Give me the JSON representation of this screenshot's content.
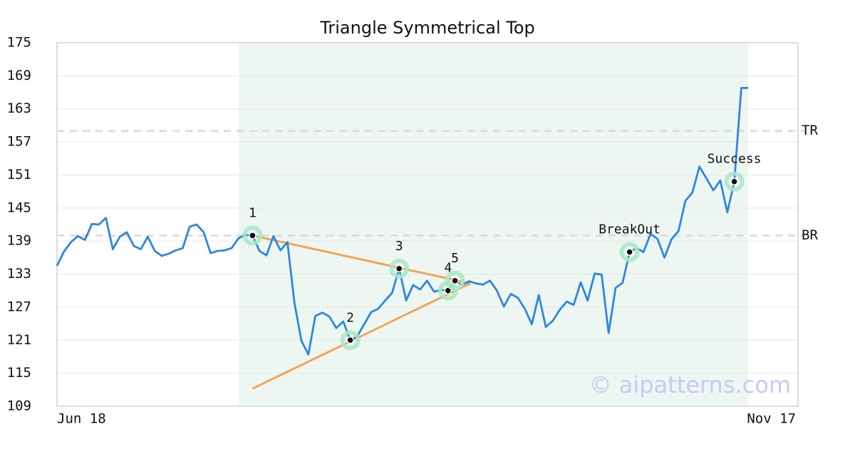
{
  "chart_data": {
    "type": "line",
    "title": "Triangle Symmetrical Top",
    "categories": [
      "Jun 18",
      null,
      null,
      null,
      null,
      null,
      null,
      null,
      null,
      null,
      null,
      null,
      null,
      null,
      null,
      null,
      null,
      null,
      null,
      null,
      null,
      null,
      null,
      null,
      null,
      null,
      null,
      null,
      null,
      null,
      null,
      null,
      null,
      null,
      null,
      null,
      null,
      null,
      null,
      null,
      null,
      null,
      null,
      null,
      null,
      null,
      null,
      null,
      null,
      null,
      null,
      null,
      null,
      null,
      null,
      null,
      null,
      null,
      null,
      null,
      null,
      null,
      null,
      null,
      null,
      null,
      null,
      null,
      null,
      null,
      null,
      null,
      null,
      null,
      null,
      null,
      null,
      null,
      null,
      null,
      null,
      null,
      null,
      null,
      null,
      null,
      null,
      null,
      null,
      null,
      null,
      null,
      null,
      null,
      null,
      null,
      null,
      null,
      null,
      "Nov 17"
    ],
    "series": [
      {
        "name": "Price",
        "color": "#2e86de",
        "values": [
          134.5,
          137.1,
          138.8,
          139.9,
          139.2,
          142.1,
          142.0,
          143.2,
          137.5,
          139.8,
          140.6,
          138.1,
          137.5,
          139.8,
          137.2,
          136.3,
          136.7,
          137.3,
          137.7,
          141.6,
          142.0,
          140.6,
          136.8,
          137.2,
          137.3,
          137.7,
          139.5,
          140.1,
          140.0,
          137.2,
          136.4,
          139.9,
          137.3,
          138.8,
          127.8,
          120.9,
          118.4,
          125.4,
          126.0,
          125.3,
          123.2,
          124.4,
          121.0,
          121.7,
          123.9,
          126.1,
          126.7,
          128.2,
          129.6,
          134.0,
          128.2,
          131.0,
          130.2,
          131.8,
          129.8,
          130.1,
          130.0,
          131.8,
          131.0,
          131.7,
          131.3,
          131.1,
          131.8,
          130.0,
          127.1,
          129.4,
          128.7,
          126.7,
          123.9,
          129.2,
          123.4,
          124.5,
          126.5,
          128.0,
          127.4,
          131.5,
          128.2,
          133.1,
          132.9,
          122.3,
          130.5,
          131.4,
          137.0,
          137.7,
          137.0,
          140.3,
          139.4,
          136.0,
          139.3,
          140.8,
          146.3,
          147.8,
          152.5,
          150.4,
          148.2,
          150.0,
          144.2,
          149.8,
          166.8,
          166.8
        ]
      }
    ],
    "ylim": [
      109,
      175
    ],
    "yticks": [
      109,
      115,
      121,
      127,
      133,
      139,
      145,
      151,
      157,
      163,
      169,
      175
    ],
    "grid": true,
    "shaded": {
      "from": 26,
      "to": 99,
      "color": "#eef6f2"
    },
    "ref_lines": [
      {
        "label": "TR",
        "value": 159
      },
      {
        "label": "BR",
        "value": 140
      }
    ],
    "trendlines": [
      {
        "x": [
          28,
          59.2
        ],
        "y": [
          140,
          131.3
        ],
        "color": "#f4a04b"
      },
      {
        "x": [
          28,
          59.2
        ],
        "y": [
          112.2,
          131.3
        ],
        "color": "#f4a04b"
      }
    ],
    "annotations": [
      {
        "label": "1",
        "x": 28,
        "y": 140.0
      },
      {
        "label": "2",
        "x": 42,
        "y": 121.0
      },
      {
        "label": "3",
        "x": 49,
        "y": 134.0
      },
      {
        "label": "4",
        "x": 56,
        "y": 130.0
      },
      {
        "label": "5",
        "x": 57,
        "y": 131.8
      },
      {
        "label": "BreakOut",
        "x": 82,
        "y": 137.0
      },
      {
        "label": "Success",
        "x": 97,
        "y": 149.8
      }
    ],
    "watermark": "© aipatterns.com"
  }
}
